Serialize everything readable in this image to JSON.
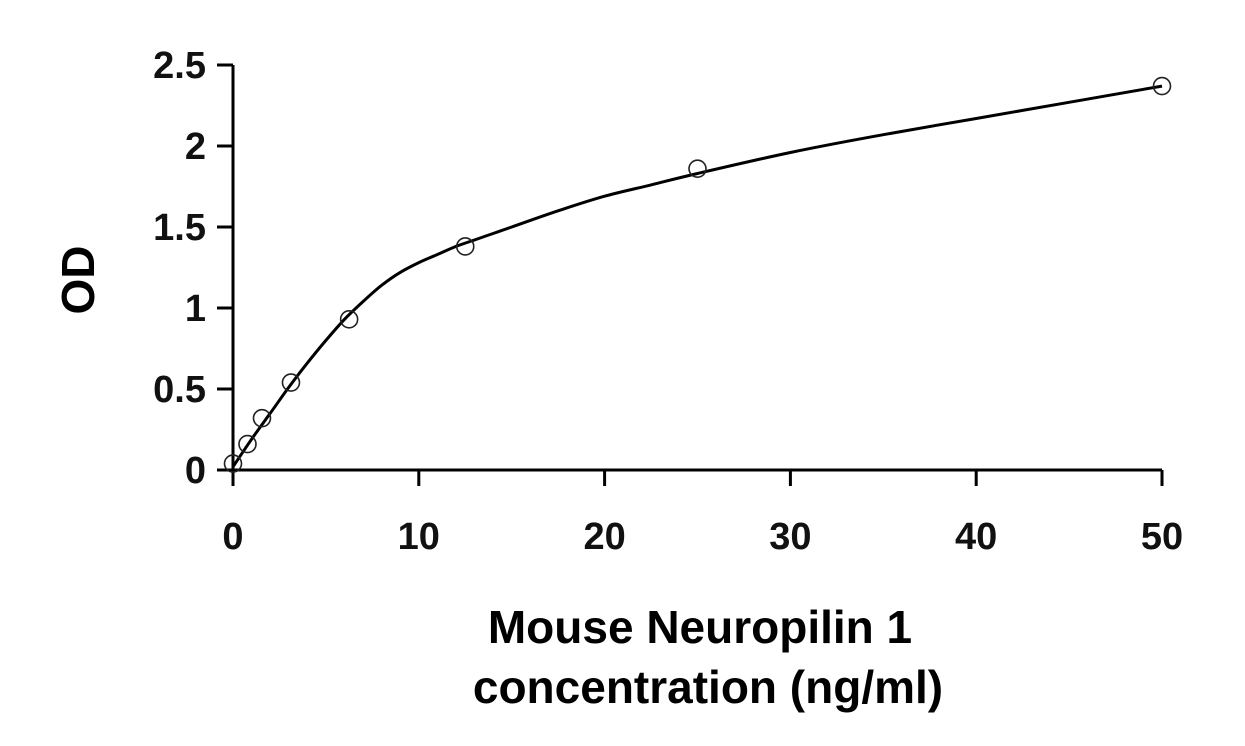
{
  "chart_data": {
    "type": "scatter",
    "title": "",
    "xlabel_lines": [
      "Mouse Neuropilin 1",
      "concentration (ng/ml)"
    ],
    "ylabel": "OD",
    "xlim": [
      0,
      50
    ],
    "ylim": [
      0,
      2.5
    ],
    "x_ticks": [
      0,
      10,
      20,
      30,
      40,
      50
    ],
    "x_tick_labels": [
      "0",
      "10",
      "20",
      "30",
      "40",
      "50"
    ],
    "y_ticks": [
      0,
      0.5,
      1,
      1.5,
      2,
      2.5
    ],
    "y_tick_labels": [
      "0",
      "0.5",
      "1",
      "1.5",
      "2",
      "2.5"
    ],
    "grid": false,
    "legend": "none",
    "series": [
      {
        "kind": "points",
        "marker": "open-circle",
        "x": [
          0,
          0.78,
          1.56,
          3.12,
          6.25,
          12.5,
          25,
          50
        ],
        "y": [
          0.04,
          0.16,
          0.32,
          0.54,
          0.93,
          1.38,
          1.86,
          2.37
        ]
      },
      {
        "kind": "fitted-curve",
        "x": [
          0,
          1,
          2,
          3,
          4,
          5,
          6,
          7,
          8,
          9,
          10,
          11,
          12,
          13,
          14,
          15,
          17.5,
          20,
          22.5,
          25,
          30,
          35,
          40,
          45,
          50
        ],
        "y": [
          0.02,
          0.19,
          0.35,
          0.51,
          0.66,
          0.8,
          0.93,
          1.04,
          1.14,
          1.22,
          1.28,
          1.33,
          1.38,
          1.42,
          1.46,
          1.5,
          1.6,
          1.69,
          1.76,
          1.83,
          1.96,
          2.07,
          2.17,
          2.27,
          2.37
        ]
      }
    ],
    "colors": {
      "axis": "#000000",
      "marker_stroke": "#222222",
      "curve": "#000000"
    }
  }
}
